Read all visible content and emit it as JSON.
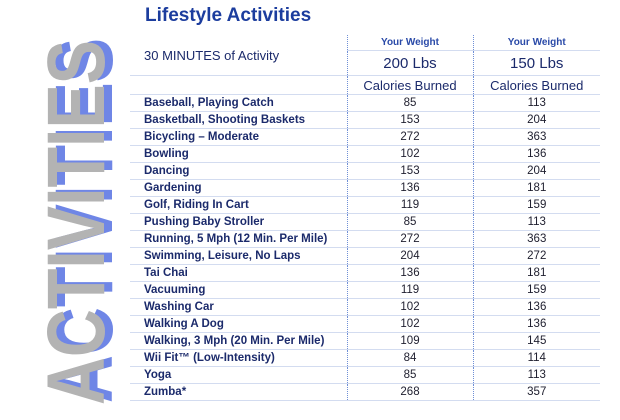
{
  "sidebar": "ACTIVITIES",
  "header": {
    "title": "Lifestyle Activities"
  },
  "table": {
    "corner": "30 MINUTES of Activity",
    "columns": [
      {
        "label": "Your Weight",
        "weight": "200 Lbs",
        "unit": "Calories Burned"
      },
      {
        "label": "Your Weight",
        "weight": "150 Lbs",
        "unit": "Calories Burned"
      }
    ],
    "rows": [
      [
        "Baseball, Playing Catch",
        85,
        113
      ],
      [
        "Basketball, Shooting Baskets",
        153,
        204
      ],
      [
        "Bicycling – Moderate",
        272,
        363
      ],
      [
        "Bowling",
        102,
        136
      ],
      [
        "Dancing",
        153,
        204
      ],
      [
        "Gardening",
        136,
        181
      ],
      [
        "Golf, Riding In Cart",
        119,
        159
      ],
      [
        "Pushing Baby Stroller",
        85,
        113
      ],
      [
        "Running, 5 Mph (12 Min. Per Mile)",
        272,
        363
      ],
      [
        "Swimming, Leisure, No Laps",
        204,
        272
      ],
      [
        "Tai Chai",
        136,
        181
      ],
      [
        "Vacuuming",
        119,
        159
      ],
      [
        "Washing Car",
        102,
        136
      ],
      [
        "Walking A Dog",
        102,
        136
      ],
      [
        "Walking, 3 Mph (20 Min. Per Mile)",
        109,
        145
      ],
      [
        "Wii Fit™ (Low-Intensity)",
        84,
        114
      ],
      [
        "Yoga",
        85,
        113
      ],
      [
        "Zumba*",
        268,
        357
      ]
    ]
  }
}
